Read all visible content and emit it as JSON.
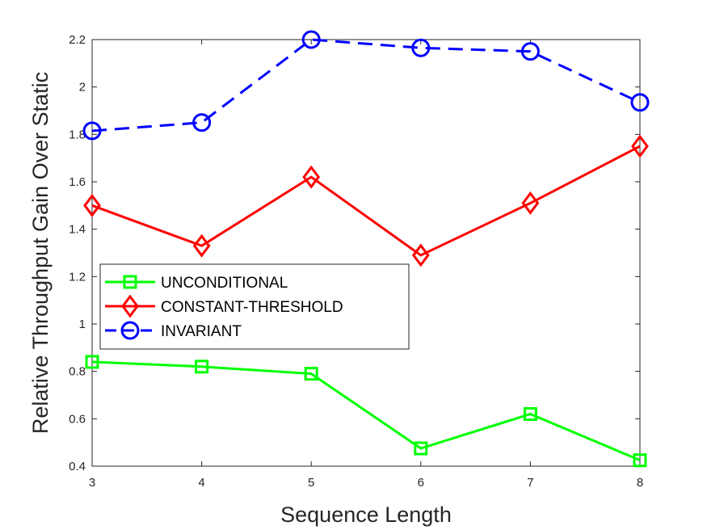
{
  "chart_data": {
    "type": "line",
    "xlabel": "Sequence Length",
    "ylabel": "Relative Throughput Gain Over Static",
    "x": [
      3,
      4,
      5,
      6,
      7,
      8
    ],
    "xlim": [
      3,
      8
    ],
    "ylim": [
      0.4,
      2.2
    ],
    "xticks": [
      "3",
      "4",
      "5",
      "6",
      "7",
      "8"
    ],
    "yticks": [
      "0.4",
      "0.6",
      "0.8",
      "1",
      "1.2",
      "1.4",
      "1.6",
      "1.8",
      "2",
      "2.2"
    ],
    "grid": false,
    "legend_position": "middle-left",
    "series": [
      {
        "name": "UNCONDITIONAL",
        "values": [
          0.84,
          0.82,
          0.79,
          0.475,
          0.62,
          0.425
        ],
        "color": "#00ff00",
        "marker": "square",
        "line_style": "solid"
      },
      {
        "name": "CONSTANT-THRESHOLD",
        "values": [
          1.5,
          1.33,
          1.62,
          1.29,
          1.51,
          1.75
        ],
        "color": "#ff0000",
        "marker": "diamond",
        "line_style": "solid"
      },
      {
        "name": "INVARIANT",
        "values": [
          1.815,
          1.85,
          2.2,
          2.165,
          2.15,
          1.935
        ],
        "color": "#0000ff",
        "marker": "circle",
        "line_style": "dashed"
      }
    ]
  }
}
